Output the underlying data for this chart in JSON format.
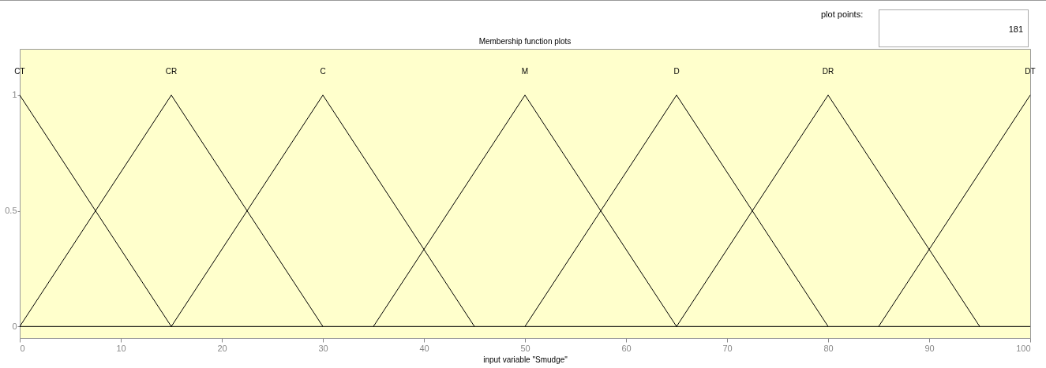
{
  "chart_data": {
    "type": "line",
    "title": "Membership function plots",
    "xlabel": "input variable \"Smudge\"",
    "annotations": [
      "plot points:",
      "181"
    ],
    "xlim": [
      0,
      100
    ],
    "xticks": [
      0,
      10,
      20,
      30,
      40,
      50,
      60,
      70,
      80,
      90,
      100
    ],
    "ylim": [
      -0.05,
      1.2
    ],
    "yticks": [
      0,
      0.5,
      1
    ],
    "grid": false,
    "legend": false,
    "marker": "none",
    "line_style": "solid",
    "ref_lines": [
      {
        "axis": "y",
        "value": 0,
        "color": "#000000"
      }
    ],
    "series": [
      {
        "name": "CT",
        "color": "#000000",
        "x": [
          0,
          15
        ],
        "values": [
          1,
          0
        ]
      },
      {
        "name": "CR",
        "color": "#000000",
        "x": [
          0,
          15,
          30
        ],
        "values": [
          0,
          1,
          0
        ]
      },
      {
        "name": "C",
        "color": "#000000",
        "x": [
          15,
          30,
          45
        ],
        "values": [
          0,
          1,
          0
        ]
      },
      {
        "name": "M",
        "color": "#000000",
        "x": [
          35,
          50,
          65
        ],
        "values": [
          0,
          1,
          0
        ]
      },
      {
        "name": "D",
        "color": "#000000",
        "x": [
          50,
          65,
          80
        ],
        "values": [
          0,
          1,
          0
        ]
      },
      {
        "name": "DR",
        "color": "#000000",
        "x": [
          65,
          80,
          95
        ],
        "values": [
          0,
          1,
          0
        ]
      },
      {
        "name": "DT",
        "color": "#000000",
        "x": [
          85,
          100
        ],
        "values": [
          0,
          1
        ]
      }
    ]
  }
}
